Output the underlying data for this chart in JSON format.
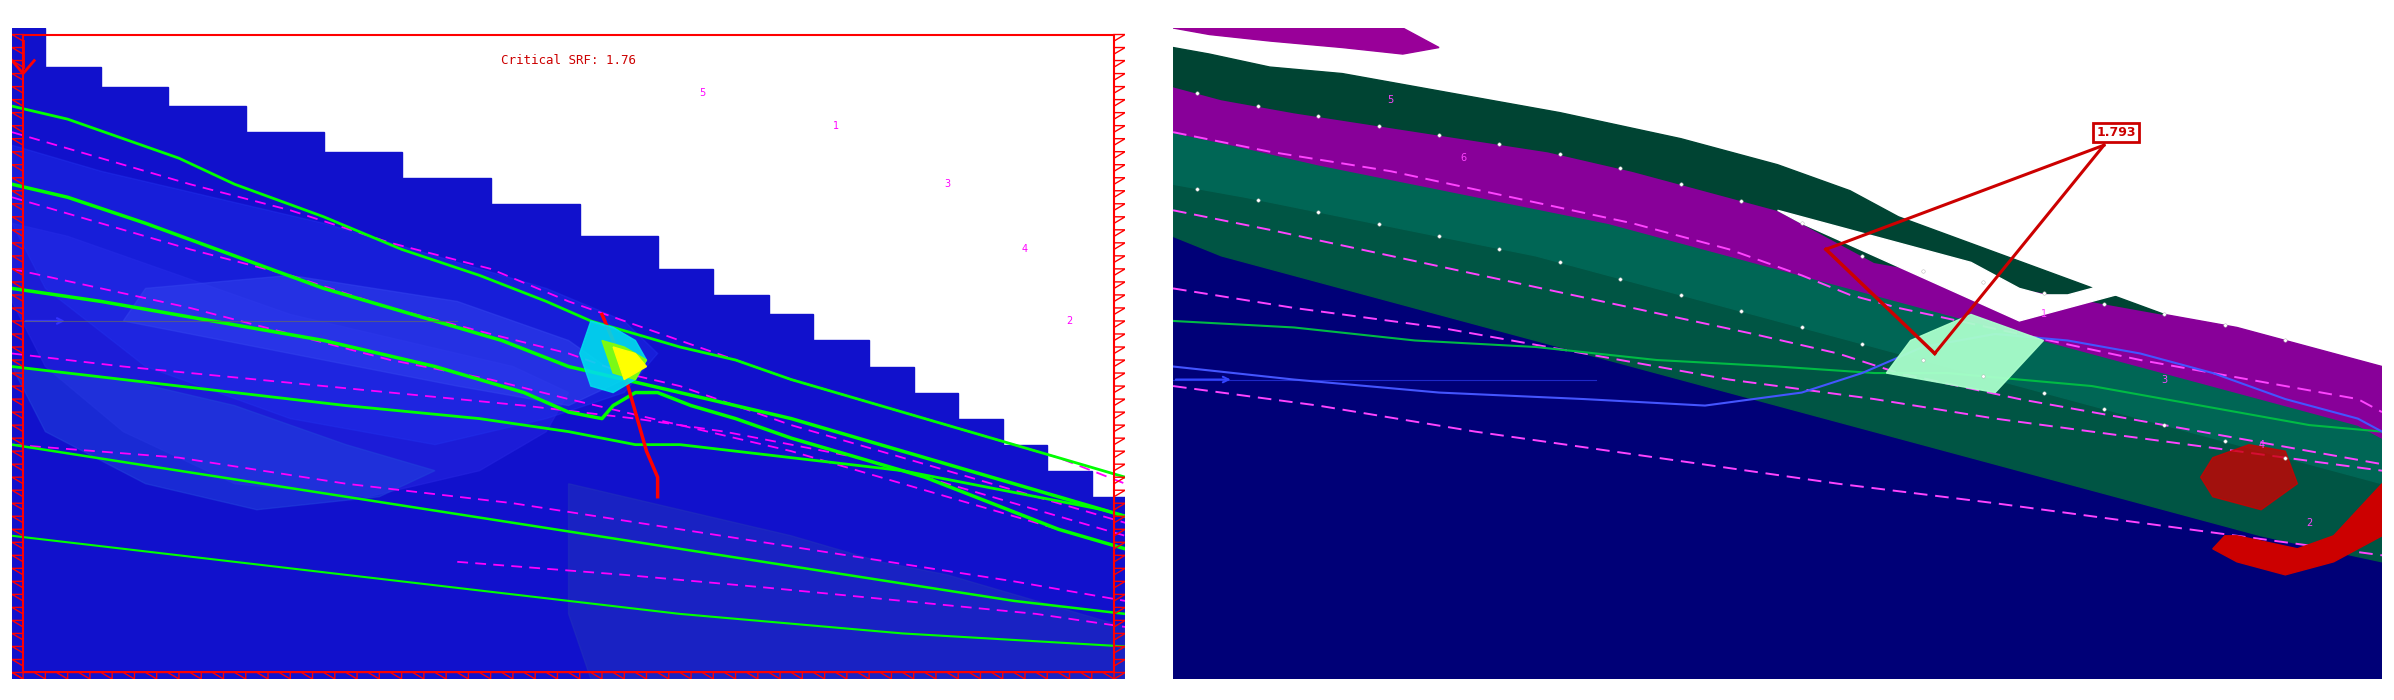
{
  "fig_width": 23.94,
  "fig_height": 7.0,
  "bg_color": "#ffffff",
  "left_title": "Critical SRF: 1.76",
  "left_title_color": "#cc0000",
  "right_label": "1.793",
  "right_label_color": "#cc0000",
  "left_panel": {
    "deep_blue": "#0000cc",
    "mid_blue": "#1a1aee",
    "light_blue": "#3333ff",
    "lighter_blue": "#4444dd",
    "green_line": "#00ff00",
    "red_line": "#ff0000",
    "magenta_dashed": "#ff00ff",
    "border_color": "#ff0000",
    "cyan_spot": "#00ffee",
    "yellow_spot": "#ffff00",
    "yellow_green": "#aaff00"
  },
  "right_panel": {
    "deep_blue": "#000077",
    "dark_navy": "#000044",
    "teal_dark": "#005544",
    "teal_mid": "#006655",
    "teal_bright": "#008877",
    "purple_dark": "#880099",
    "purple_bright": "#aa00cc",
    "light_green": "#aaffcc",
    "red_fill": "#cc0000",
    "green_line": "#00aa44",
    "blue_line": "#4455ff",
    "magenta_dashed": "#ff44ff",
    "red_triangle": "#ff0000"
  },
  "left_terrain": {
    "surface_x": [
      0,
      3,
      3,
      8,
      8,
      14,
      14,
      21,
      21,
      28,
      28,
      35,
      35,
      43,
      43,
      51,
      51,
      58,
      58,
      63,
      63,
      68,
      68,
      72,
      72,
      77,
      77,
      81,
      81,
      85,
      85,
      89,
      89,
      93,
      93,
      97,
      97,
      100,
      100,
      0
    ],
    "surface_y": [
      100,
      100,
      94,
      94,
      91,
      91,
      88,
      88,
      84,
      84,
      81,
      81,
      77,
      77,
      73,
      73,
      68,
      68,
      63,
      63,
      59,
      59,
      56,
      56,
      52,
      52,
      48,
      48,
      44,
      44,
      40,
      40,
      36,
      36,
      32,
      32,
      28,
      28,
      0,
      0
    ]
  }
}
